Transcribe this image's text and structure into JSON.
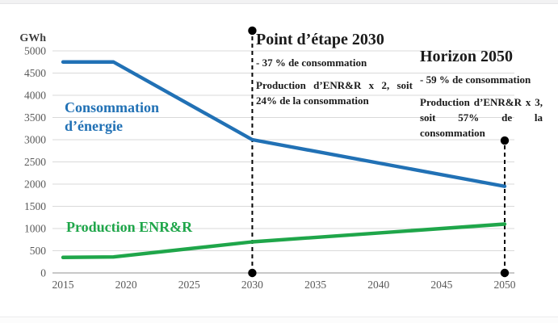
{
  "chart_data": {
    "type": "line",
    "title": "",
    "unit_label": "GWh",
    "xlabel": "",
    "ylabel": "GWh",
    "xlim": [
      2015,
      2050
    ],
    "ylim": [
      0,
      5000
    ],
    "x_ticks": [
      "2015",
      "2020",
      "2025",
      "2030",
      "2035",
      "2040",
      "2045",
      "2050"
    ],
    "y_ticks": [
      "0",
      "500",
      "1000",
      "1500",
      "2000",
      "2500",
      "3000",
      "3500",
      "4000",
      "4500",
      "5000"
    ],
    "grid": "horizontal",
    "legend": "inline-labels",
    "series": [
      {
        "name": "Consommation d’énergie",
        "color": "#2171b5",
        "x": [
          2015,
          2019,
          2030,
          2050
        ],
        "y": [
          4750,
          4750,
          3000,
          1950
        ]
      },
      {
        "name": "Production ENR&R",
        "color": "#1fa64a",
        "x": [
          2015,
          2019,
          2030,
          2050
        ],
        "y": [
          350,
          360,
          700,
          1100
        ]
      }
    ],
    "event_lines": [
      {
        "x": 2030,
        "y_from": 0,
        "y_to": 5455,
        "style": "dashed",
        "color": "#000000",
        "dot_top": true,
        "dot_bottom": true
      },
      {
        "x": 2050,
        "y_from": 0,
        "y_to": 2980,
        "style": "dashed",
        "color": "#000000",
        "dot_top": true,
        "dot_bottom": true
      }
    ]
  },
  "labels": {
    "consumption_line1": "Consommation",
    "consumption_line2": "d’énergie",
    "production": "Production ENR&R",
    "unit": "GWh"
  },
  "annotations": {
    "etape2030": {
      "title": "Point d’étape 2030",
      "line1": "- 37 % de consommation",
      "line2": "Production d’ENR&R x 2, soit 24% de la consommation"
    },
    "horizon2050": {
      "title": "Horizon 2050",
      "line1": "- 59 % de consommation",
      "line2": "Production d’ENR&R x 3, soit 57% de la consommation"
    }
  },
  "colors": {
    "consumption_blue": "#2171b5",
    "production_green": "#1fa64a",
    "gridline": "#d9d9d9",
    "axis_line": "#b5b5b5",
    "tick_text": "#595959",
    "annotation_text": "#1a1a1a"
  }
}
